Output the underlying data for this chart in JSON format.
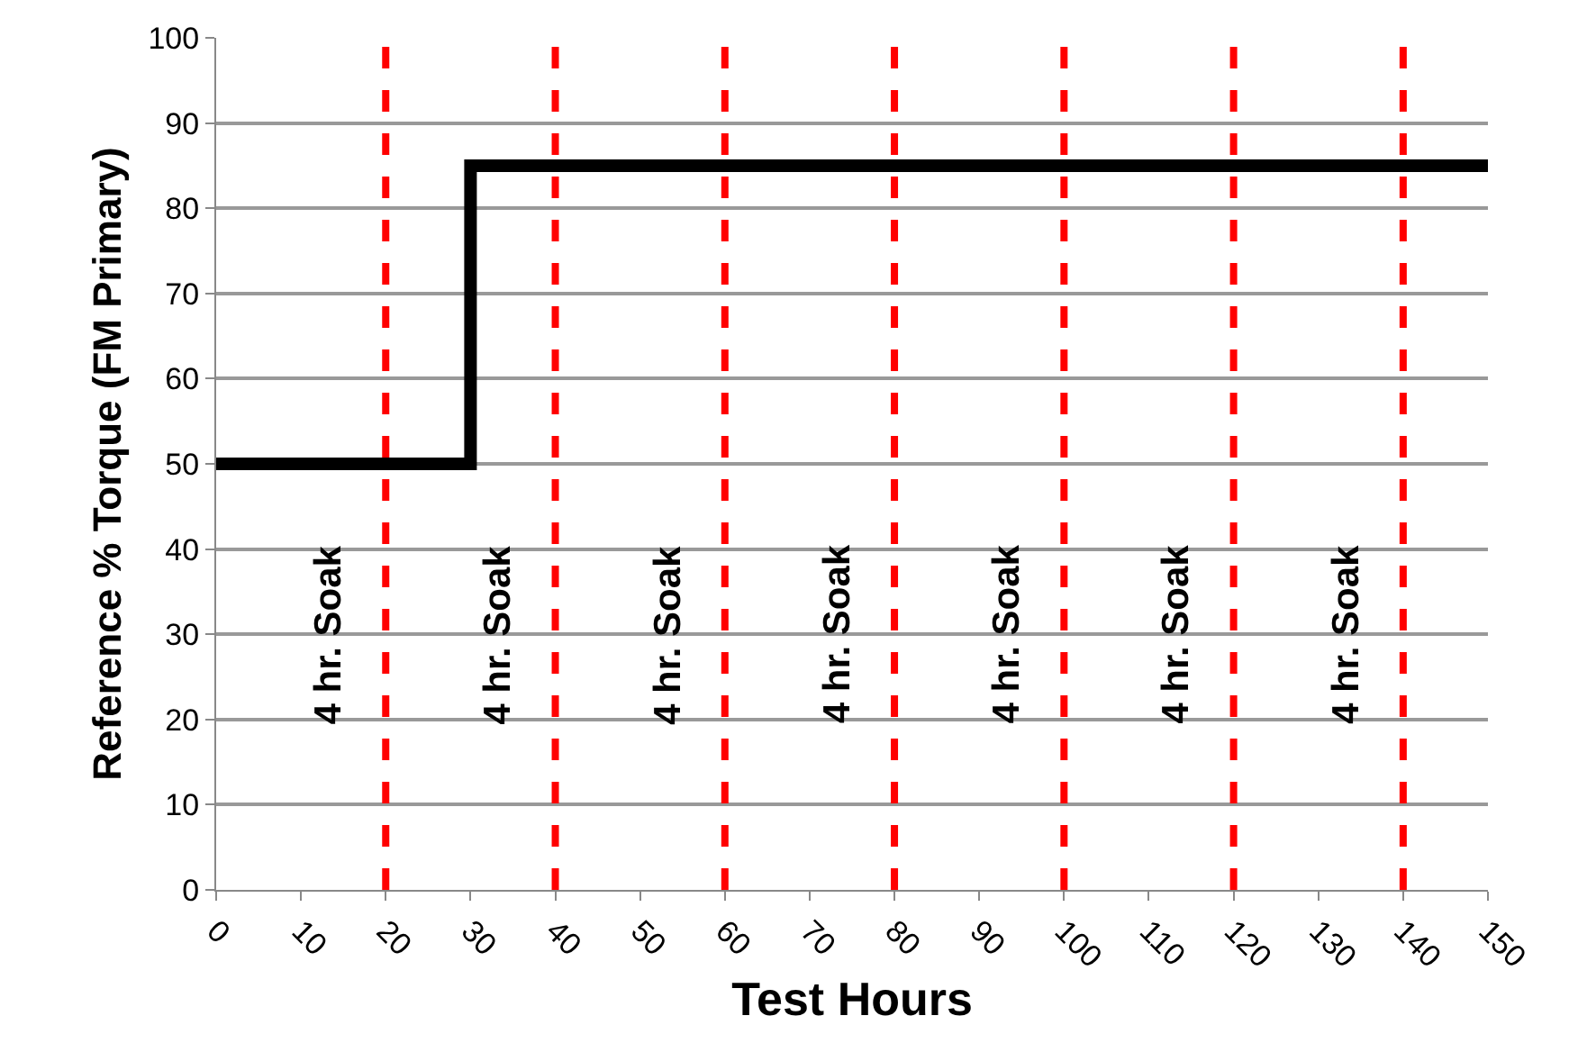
{
  "chart_data": {
    "type": "step",
    "xlabel": "Test Hours",
    "ylabel": "Reference % Torque (FM Primary)",
    "x": [
      0,
      30,
      150
    ],
    "values": [
      50,
      85,
      85
    ],
    "color": "#000000",
    "marker": "none",
    "line_style": "solid",
    "xlim": [
      0,
      150
    ],
    "xticks": [
      0,
      10,
      20,
      30,
      40,
      50,
      60,
      70,
      80,
      90,
      100,
      110,
      120,
      130,
      140,
      150
    ],
    "ylim": [
      0,
      100
    ],
    "yticks": [
      0,
      10,
      20,
      30,
      40,
      50,
      60,
      70,
      80,
      90,
      100
    ],
    "grid": "y",
    "legend": false,
    "ref_lines": [
      {
        "axis": "x",
        "value": 20,
        "label": "4 hr. Soak",
        "color": "#ff0000",
        "line_style": "dashed"
      },
      {
        "axis": "x",
        "value": 40,
        "label": "4 hr. Soak",
        "color": "#ff0000",
        "line_style": "dashed"
      },
      {
        "axis": "x",
        "value": 60,
        "label": "4 hr. Soak",
        "color": "#ff0000",
        "line_style": "dashed"
      },
      {
        "axis": "x",
        "value": 80,
        "label": "4 hr. Soak",
        "color": "#ff0000",
        "line_style": "dashed"
      },
      {
        "axis": "x",
        "value": 100,
        "label": "4 hr. Soak",
        "color": "#ff0000",
        "line_style": "dashed"
      },
      {
        "axis": "x",
        "value": 120,
        "label": "4 hr. Soak",
        "color": "#ff0000",
        "line_style": "dashed"
      },
      {
        "axis": "x",
        "value": 140,
        "label": "4 hr. Soak",
        "color": "#ff0000",
        "line_style": "dashed"
      }
    ]
  }
}
